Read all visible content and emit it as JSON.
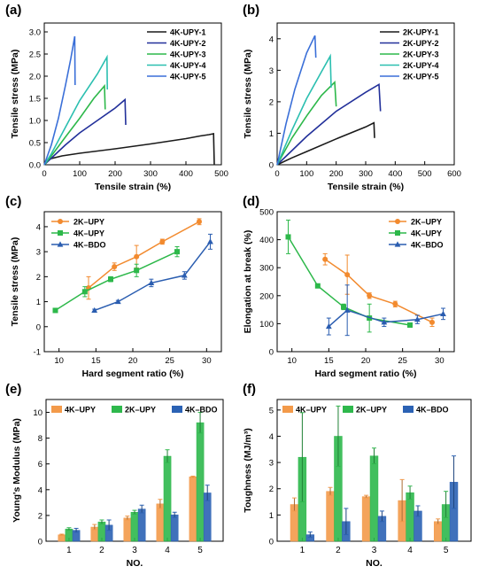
{
  "chart_data": [
    {
      "panel": "(a)",
      "type": "line",
      "xlabel": "Tensile strain (%)",
      "ylabel": "Tensile stress (MPa)",
      "xlim": [
        0,
        500
      ],
      "ylim": [
        0,
        3.2
      ],
      "xticks": [
        0,
        100,
        200,
        300,
        400,
        500
      ],
      "yticks": [
        0.0,
        0.5,
        1.0,
        1.5,
        2.0,
        2.5,
        3.0
      ],
      "legend": "top-right",
      "series": [
        {
          "name": "4K-UPY-1",
          "color": "#1a1a1a",
          "points": [
            [
              0,
              0
            ],
            [
              10,
              0.12
            ],
            [
              50,
              0.2
            ],
            [
              100,
              0.26
            ],
            [
              200,
              0.36
            ],
            [
              300,
              0.47
            ],
            [
              400,
              0.59
            ],
            [
              440,
              0.65
            ],
            [
              465,
              0.68
            ],
            [
              478,
              0.7
            ],
            [
              480,
              0.0
            ]
          ]
        },
        {
          "name": "4K-UPY-2",
          "color": "#22309a",
          "points": [
            [
              0,
              0
            ],
            [
              20,
              0.15
            ],
            [
              60,
              0.45
            ],
            [
              100,
              0.72
            ],
            [
              150,
              1.0
            ],
            [
              200,
              1.28
            ],
            [
              228,
              1.47
            ],
            [
              230,
              0.9
            ]
          ]
        },
        {
          "name": "4K-UPY-3",
          "color": "#2db84a",
          "points": [
            [
              0,
              0
            ],
            [
              20,
              0.2
            ],
            [
              60,
              0.63
            ],
            [
              100,
              1.05
            ],
            [
              140,
              1.5
            ],
            [
              170,
              1.78
            ],
            [
              172,
              1.25
            ]
          ]
        },
        {
          "name": "4K-UPY-4",
          "color": "#2bbfb0",
          "points": [
            [
              0,
              0
            ],
            [
              20,
              0.25
            ],
            [
              60,
              0.85
            ],
            [
              100,
              1.45
            ],
            [
              150,
              2.05
            ],
            [
              177,
              2.43
            ],
            [
              178,
              1.7
            ]
          ]
        },
        {
          "name": "4K-UPY-5",
          "color": "#3a6fd8",
          "points": [
            [
              0,
              0
            ],
            [
              20,
              0.45
            ],
            [
              40,
              1.05
            ],
            [
              60,
              1.8
            ],
            [
              75,
              2.4
            ],
            [
              86,
              2.9
            ],
            [
              87,
              1.8
            ]
          ]
        }
      ]
    },
    {
      "panel": "(b)",
      "type": "line",
      "xlabel": "Tensile strain (%)",
      "ylabel": "Tensile stress (MPa)",
      "xlim": [
        0,
        600
      ],
      "ylim": [
        0,
        4.5
      ],
      "xticks": [
        0,
        100,
        200,
        300,
        400,
        500,
        600
      ],
      "yticks": [
        0,
        1,
        2,
        3,
        4
      ],
      "legend": "top-right",
      "series": [
        {
          "name": "2K-UPY-1",
          "color": "#1a1a1a",
          "points": [
            [
              0,
              0
            ],
            [
              50,
              0.22
            ],
            [
              100,
              0.42
            ],
            [
              200,
              0.82
            ],
            [
              300,
              1.2
            ],
            [
              328,
              1.33
            ],
            [
              330,
              0.85
            ]
          ]
        },
        {
          "name": "2K-UPY-2",
          "color": "#22309a",
          "points": [
            [
              0,
              0
            ],
            [
              50,
              0.45
            ],
            [
              100,
              0.9
            ],
            [
              200,
              1.7
            ],
            [
              300,
              2.3
            ],
            [
              345,
              2.55
            ],
            [
              350,
              1.7
            ]
          ]
        },
        {
          "name": "2K-UPY-3",
          "color": "#2db84a",
          "points": [
            [
              0,
              0
            ],
            [
              50,
              0.85
            ],
            [
              100,
              1.55
            ],
            [
              150,
              2.2
            ],
            [
              195,
              2.62
            ],
            [
              200,
              1.85
            ]
          ]
        },
        {
          "name": "2K-UPY-4",
          "color": "#2bbfb0",
          "points": [
            [
              0,
              0
            ],
            [
              50,
              1.1
            ],
            [
              100,
              2.1
            ],
            [
              150,
              2.95
            ],
            [
              180,
              3.45
            ],
            [
              183,
              2.45
            ]
          ]
        },
        {
          "name": "2K-UPY-5",
          "color": "#3a6fd8",
          "points": [
            [
              0,
              0
            ],
            [
              30,
              1.3
            ],
            [
              60,
              2.4
            ],
            [
              100,
              3.55
            ],
            [
              128,
              4.1
            ],
            [
              131,
              3.4
            ]
          ]
        }
      ]
    },
    {
      "panel": "(c)",
      "type": "line",
      "xlabel": "Hard segment ratio (%)",
      "ylabel": "Tensile stress (MPa)",
      "xlim": [
        8,
        32
      ],
      "ylim": [
        -1,
        4.6
      ],
      "xticks": [
        10,
        15,
        20,
        25,
        30
      ],
      "yticks": [
        -1,
        0,
        1,
        2,
        3,
        4
      ],
      "legend": "top-left",
      "series": [
        {
          "name": "2K–UPY",
          "color": "#f28a2e",
          "marker": "circle",
          "x": [
            14,
            17.5,
            20.5,
            24,
            29
          ],
          "y": [
            1.55,
            2.4,
            2.8,
            3.4,
            4.2
          ],
          "err": [
            0.45,
            0.15,
            0.45,
            0.1,
            0.12
          ]
        },
        {
          "name": "4K–UPY",
          "color": "#2db84a",
          "marker": "square",
          "x": [
            9.5,
            13.5,
            17,
            20.5,
            26
          ],
          "y": [
            0.65,
            1.4,
            1.9,
            2.25,
            3.0
          ],
          "err": [
            0.05,
            0.2,
            0.1,
            0.25,
            0.2
          ]
        },
        {
          "name": "4K–BDO",
          "color": "#2a5db0",
          "marker": "triangle",
          "x": [
            14.8,
            18,
            22.5,
            27,
            30.5
          ],
          "y": [
            0.65,
            1.0,
            1.75,
            2.05,
            3.4
          ],
          "err": [
            0.05,
            0.05,
            0.15,
            0.15,
            0.3
          ]
        }
      ]
    },
    {
      "panel": "(d)",
      "type": "line",
      "xlabel": "Hard segment ratio (%)",
      "ylabel": "Elongation at break (%)",
      "xlim": [
        8,
        32
      ],
      "ylim": [
        0,
        500
      ],
      "xticks": [
        10,
        15,
        20,
        25,
        30
      ],
      "yticks": [
        0,
        100,
        200,
        300,
        400,
        500
      ],
      "legend": "top-right",
      "series": [
        {
          "name": "2K–UPY",
          "color": "#f28a2e",
          "marker": "circle",
          "x": [
            14.5,
            17.5,
            20.5,
            24,
            29
          ],
          "y": [
            330,
            275,
            200,
            170,
            105
          ],
          "err": [
            20,
            70,
            10,
            10,
            15
          ]
        },
        {
          "name": "4K–UPY",
          "color": "#2db84a",
          "marker": "square",
          "x": [
            9.5,
            13.5,
            17,
            20.5,
            26
          ],
          "y": [
            410,
            235,
            160,
            120,
            95
          ],
          "err": [
            60,
            5,
            10,
            50,
            5
          ]
        },
        {
          "name": "4K–BDO",
          "color": "#2a5db0",
          "marker": "triangle",
          "x": [
            15,
            17.5,
            22.5,
            27,
            30.5
          ],
          "y": [
            90,
            148,
            105,
            115,
            135
          ],
          "err": [
            30,
            90,
            15,
            15,
            20
          ]
        }
      ]
    },
    {
      "panel": "(e)",
      "type": "bar",
      "xlabel": "NO.",
      "ylabel": "Young's Modulus (MPa)",
      "categories": [
        "1",
        "2",
        "3",
        "4",
        "5"
      ],
      "ylim": [
        0,
        11
      ],
      "yticks": [
        0,
        2,
        4,
        6,
        8,
        10
      ],
      "legend": "top-left",
      "series": [
        {
          "name": "4K–UPY",
          "color": "#f39a4a",
          "values": [
            0.5,
            1.1,
            1.8,
            2.9,
            5.0
          ],
          "err": [
            0.05,
            0.2,
            0.15,
            0.35,
            0.05
          ]
        },
        {
          "name": "2K–UPY",
          "color": "#2eb84c",
          "values": [
            0.95,
            1.5,
            2.25,
            6.6,
            9.2
          ],
          "err": [
            0.1,
            0.15,
            0.15,
            0.5,
            0.8
          ]
        },
        {
          "name": "4K–BDO",
          "color": "#2b62b4",
          "values": [
            0.85,
            1.25,
            2.5,
            2.05,
            3.75
          ],
          "err": [
            0.15,
            0.4,
            0.3,
            0.2,
            0.6
          ]
        }
      ]
    },
    {
      "panel": "(f)",
      "type": "bar",
      "xlabel": "NO.",
      "ylabel": "Toughness (MJ/m³)",
      "categories": [
        "1",
        "2",
        "3",
        "4",
        "5"
      ],
      "ylim": [
        0,
        5.4
      ],
      "yticks": [
        0,
        1,
        2,
        3,
        4,
        5
      ],
      "legend": "top-left",
      "series": [
        {
          "name": "4K–UPY",
          "color": "#f39a4a",
          "values": [
            1.4,
            1.9,
            1.7,
            1.55,
            0.75
          ],
          "err": [
            0.25,
            0.15,
            0.05,
            0.8,
            0.1
          ]
        },
        {
          "name": "2K–UPY",
          "color": "#2eb84c",
          "values": [
            3.2,
            4.0,
            3.25,
            1.85,
            1.4
          ],
          "err": [
            1.7,
            1.15,
            0.3,
            0.25,
            0.5
          ]
        },
        {
          "name": "4K–BDO",
          "color": "#2b62b4",
          "values": [
            0.25,
            0.75,
            0.95,
            1.15,
            2.25
          ],
          "err": [
            0.1,
            0.5,
            0.2,
            0.2,
            1.0
          ]
        }
      ]
    }
  ]
}
